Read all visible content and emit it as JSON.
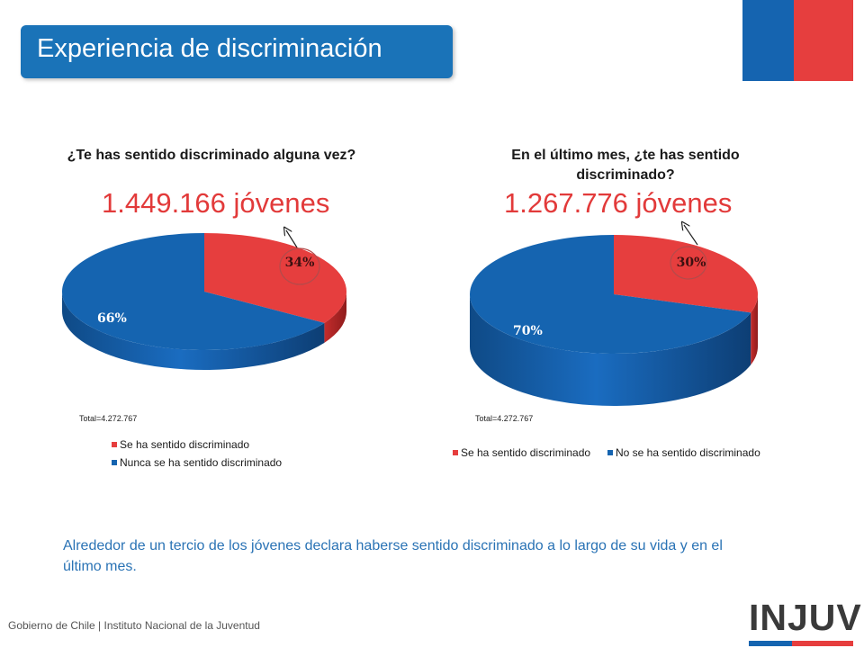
{
  "header": {
    "title": "Experiencia de discriminación"
  },
  "colors": {
    "primary_blue": "#1a73b8",
    "series_red": "#e63e3e",
    "series_blue": "#1564b0",
    "count_red": "#e23a3a"
  },
  "chart_data": [
    {
      "type": "pie",
      "title": "¿Te has sentido discriminado alguna vez?",
      "count_label": "1.449.166 jóvenes",
      "total_label": "Total=4.272.767",
      "categories": [
        "Se ha sentido discriminado",
        "Nunca se ha sentido discriminado"
      ],
      "values": [
        34,
        66
      ],
      "value_labels": [
        "34%",
        "66%"
      ],
      "colors": [
        "#e63e3e",
        "#1564b0"
      ],
      "legend_placement": "bottom-vertical"
    },
    {
      "type": "pie",
      "title": "En el último mes, ¿te has sentido discriminado?",
      "count_label": "1.267.776 jóvenes",
      "total_label": "Total=4.272.767",
      "categories": [
        "Se ha sentido discriminado",
        "No se ha sentido discriminado"
      ],
      "values": [
        30,
        70
      ],
      "value_labels": [
        "30%",
        "70%"
      ],
      "colors": [
        "#e63e3e",
        "#1564b0"
      ],
      "legend_placement": "bottom-horizontal"
    }
  ],
  "summary": "Alrededor de un tercio de los jóvenes declara haberse sentido discriminado a lo largo de su vida y en el último mes.",
  "footer": {
    "text": "Gobierno de Chile | Instituto Nacional de la Juventud"
  },
  "logo": {
    "text": "INJUV"
  }
}
